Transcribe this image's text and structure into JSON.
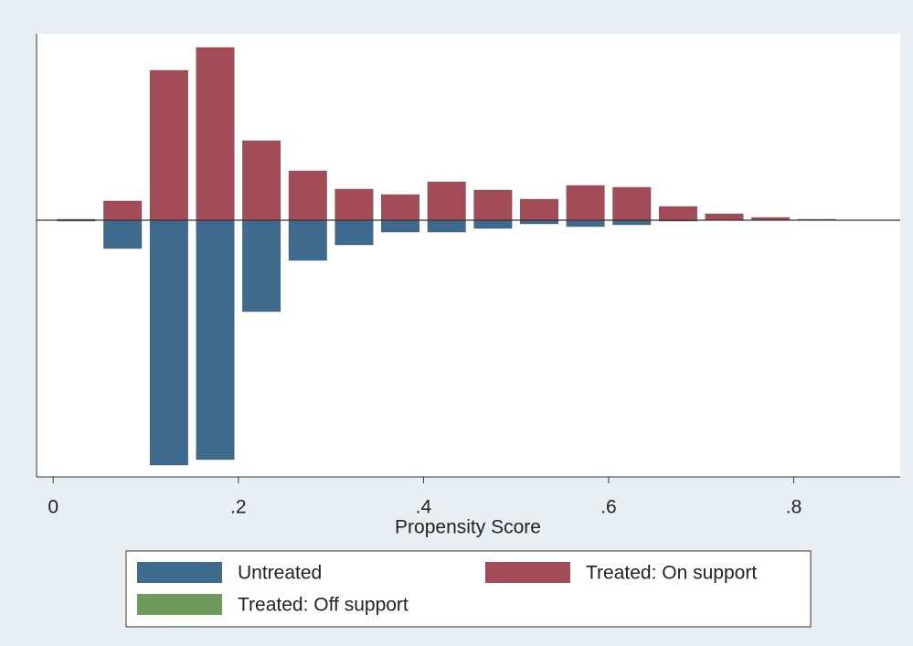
{
  "chart_data": {
    "type": "mirrored-histogram",
    "x_label": "Propensity Score",
    "bins": [
      0,
      0.05,
      0.1,
      0.15,
      0.2,
      0.25,
      0.3,
      0.35,
      0.4,
      0.45,
      0.5,
      0.55,
      0.6,
      0.65,
      0.7,
      0.75,
      0.8,
      0.85,
      0.9
    ],
    "series": [
      {
        "name": "Untreated",
        "color": "#3e6a8e",
        "values": [
          -1,
          -31,
          -268,
          -262,
          -100,
          -44,
          -27,
          -13,
          -13,
          -9,
          -4,
          -7,
          -5,
          -1,
          0,
          0,
          0,
          0
        ]
      },
      {
        "name": "Treated: On support",
        "color": "#a34c57",
        "values": [
          1,
          21,
          164,
          189,
          87,
          54,
          34,
          28,
          42,
          33,
          23,
          38,
          36,
          15,
          7,
          3,
          1,
          0
        ]
      },
      {
        "name": "Treated: Off support",
        "color": "#6e9b5c",
        "values": [
          0,
          0,
          0,
          0,
          0,
          0,
          0,
          0,
          0,
          0,
          0,
          0,
          0,
          0,
          0,
          0,
          0,
          0
        ]
      }
    ],
    "xlim": [
      -0.018,
      0.915
    ],
    "xticks": [
      0,
      {
        "value": 0.2,
        "label": ".2"
      },
      {
        "value": 0.4,
        "label": ".4"
      },
      {
        "value": 0.6,
        "label": ".6"
      },
      {
        "value": 0.8,
        "label": ".8"
      }
    ],
    "ylim": [
      -281,
      204
    ],
    "legend": "bottom"
  }
}
